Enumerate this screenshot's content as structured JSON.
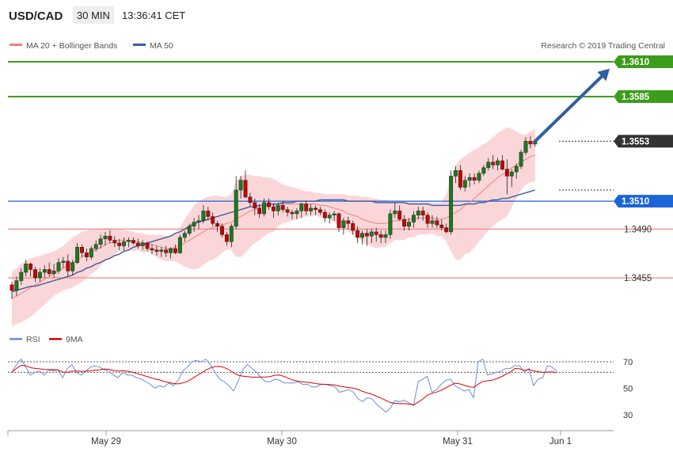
{
  "header": {
    "symbol": "USD/CAD",
    "timeframe": "30 MIN",
    "time": "13:36:41 CET"
  },
  "legend": {
    "bollinger_label": "MA 20 + Bollinger Bands",
    "ma50_label": "MA 50",
    "copyright": "Research © 2019 Trading Central"
  },
  "rsi_legend": {
    "rsi_label": "RSI",
    "ma_label": "9MA"
  },
  "colors": {
    "bullish": "#1a7a1a",
    "bearish": "#cc0000",
    "ma20": "#f08080",
    "band_fill": "#fbd6d8",
    "ma50": "#3a5f9e",
    "resistance": "#3c9c1c",
    "pivot_blue": "#1a66d9",
    "support": "#ee8888",
    "arrow": "#2f5f9e",
    "rsi": "#6b8ed6",
    "rsi_ma": "#e00000"
  },
  "levels": [
    {
      "label": "1.3610",
      "value": 1.361,
      "type": "resistance"
    },
    {
      "label": "1.3585",
      "value": 1.3585,
      "type": "resistance"
    },
    {
      "label": "1.3553",
      "value": 1.3553,
      "type": "current"
    },
    {
      "label": "1.3510",
      "value": 1.351,
      "type": "pivot"
    },
    {
      "label": "1.3490",
      "value": 1.349,
      "type": "support"
    },
    {
      "label": "1.3455",
      "value": 1.3455,
      "type": "support"
    }
  ],
  "chart_data": {
    "type": "candlestick",
    "price_range": [
      1.342,
      1.364
    ],
    "x_ticks": [
      "May 29",
      "May 30",
      "May 31",
      "Jun 1"
    ],
    "x_tick_positions": [
      14,
      42,
      70,
      84
    ],
    "candles_ohlc": [
      [
        1.345,
        1.3452,
        1.344,
        1.3446
      ],
      [
        1.3446,
        1.3456,
        1.3442,
        1.3453
      ],
      [
        1.3453,
        1.3462,
        1.345,
        1.3459
      ],
      [
        1.3459,
        1.3468,
        1.3456,
        1.3465
      ],
      [
        1.3465,
        1.3466,
        1.3456,
        1.3461
      ],
      [
        1.3461,
        1.3463,
        1.3452,
        1.3455
      ],
      [
        1.3455,
        1.3462,
        1.3452,
        1.3459
      ],
      [
        1.3459,
        1.3464,
        1.3455,
        1.3461
      ],
      [
        1.3461,
        1.3466,
        1.3456,
        1.3458
      ],
      [
        1.3458,
        1.3465,
        1.3455,
        1.346
      ],
      [
        1.346,
        1.3469,
        1.3458,
        1.3466
      ],
      [
        1.3466,
        1.347,
        1.3462,
        1.3467
      ],
      [
        1.3467,
        1.3472,
        1.3456,
        1.346
      ],
      [
        1.346,
        1.3468,
        1.3457,
        1.3466
      ],
      [
        1.3466,
        1.348,
        1.3465,
        1.3477
      ],
      [
        1.3477,
        1.3479,
        1.347,
        1.3473
      ],
      [
        1.3473,
        1.3476,
        1.3467,
        1.347
      ],
      [
        1.347,
        1.3478,
        1.3468,
        1.3476
      ],
      [
        1.3476,
        1.3482,
        1.3474,
        1.3479
      ],
      [
        1.3479,
        1.3486,
        1.3476,
        1.3483
      ],
      [
        1.3483,
        1.3488,
        1.3478,
        1.3485
      ],
      [
        1.3485,
        1.3489,
        1.348,
        1.3482
      ],
      [
        1.3482,
        1.3485,
        1.3477,
        1.348
      ],
      [
        1.348,
        1.3483,
        1.3475,
        1.3478
      ],
      [
        1.3478,
        1.3484,
        1.3474,
        1.3481
      ],
      [
        1.3481,
        1.3484,
        1.3477,
        1.3482
      ],
      [
        1.3482,
        1.3484,
        1.3479,
        1.348
      ],
      [
        1.348,
        1.3483,
        1.3476,
        1.3478
      ],
      [
        1.3478,
        1.3482,
        1.3475,
        1.348
      ],
      [
        1.348,
        1.3481,
        1.3474,
        1.3476
      ],
      [
        1.3476,
        1.3479,
        1.3472,
        1.3475
      ],
      [
        1.3475,
        1.3478,
        1.3471,
        1.3474
      ],
      [
        1.3474,
        1.3477,
        1.347,
        1.3475
      ],
      [
        1.3475,
        1.3478,
        1.347,
        1.3473
      ],
      [
        1.3473,
        1.3477,
        1.3469,
        1.3476
      ],
      [
        1.3476,
        1.3479,
        1.3472,
        1.3473
      ],
      [
        1.3473,
        1.3486,
        1.3472,
        1.3484
      ],
      [
        1.3484,
        1.3489,
        1.3481,
        1.3487
      ],
      [
        1.3487,
        1.3494,
        1.3485,
        1.3492
      ],
      [
        1.3492,
        1.3498,
        1.3488,
        1.3495
      ],
      [
        1.3495,
        1.35,
        1.349,
        1.3496
      ],
      [
        1.3496,
        1.3507,
        1.3494,
        1.3503
      ],
      [
        1.3503,
        1.3506,
        1.3496,
        1.3499
      ],
      [
        1.3499,
        1.3502,
        1.3492,
        1.3494
      ],
      [
        1.3494,
        1.3496,
        1.3488,
        1.3492
      ],
      [
        1.3492,
        1.3494,
        1.3484,
        1.3486
      ],
      [
        1.3486,
        1.3488,
        1.3478,
        1.3481
      ],
      [
        1.3481,
        1.3494,
        1.3477,
        1.3492
      ],
      [
        1.3492,
        1.3528,
        1.349,
        1.3518
      ],
      [
        1.3518,
        1.3528,
        1.3512,
        1.3525
      ],
      [
        1.3525,
        1.3532,
        1.3512,
        1.3513
      ],
      [
        1.3513,
        1.3516,
        1.3506,
        1.3509
      ],
      [
        1.3509,
        1.3512,
        1.35,
        1.3505
      ],
      [
        1.3505,
        1.3508,
        1.3498,
        1.3501
      ],
      [
        1.3501,
        1.3512,
        1.3499,
        1.3509
      ],
      [
        1.3509,
        1.3512,
        1.3504,
        1.3506
      ],
      [
        1.3506,
        1.3508,
        1.3498,
        1.3503
      ],
      [
        1.3503,
        1.3509,
        1.35,
        1.3507
      ],
      [
        1.3507,
        1.351,
        1.3502,
        1.3504
      ],
      [
        1.3504,
        1.3506,
        1.3499,
        1.3502
      ],
      [
        1.3502,
        1.3504,
        1.3497,
        1.3501
      ],
      [
        1.3501,
        1.3505,
        1.3497,
        1.3503
      ],
      [
        1.3503,
        1.3509,
        1.3498,
        1.3508
      ],
      [
        1.3508,
        1.351,
        1.35,
        1.3503
      ],
      [
        1.3503,
        1.3508,
        1.35,
        1.3505
      ],
      [
        1.3505,
        1.3507,
        1.35,
        1.3504
      ],
      [
        1.3504,
        1.3506,
        1.35,
        1.3502
      ],
      [
        1.3502,
        1.3504,
        1.3495,
        1.3498
      ],
      [
        1.3498,
        1.3502,
        1.3494,
        1.35
      ],
      [
        1.35,
        1.3503,
        1.3496,
        1.3501
      ],
      [
        1.3501,
        1.3502,
        1.3488,
        1.3491
      ],
      [
        1.3491,
        1.3498,
        1.3486,
        1.3496
      ],
      [
        1.3496,
        1.3499,
        1.349,
        1.3494
      ],
      [
        1.3494,
        1.3496,
        1.3486,
        1.3489
      ],
      [
        1.3489,
        1.3492,
        1.348,
        1.3484
      ],
      [
        1.3484,
        1.3489,
        1.3479,
        1.3487
      ],
      [
        1.3487,
        1.349,
        1.3478,
        1.3485
      ],
      [
        1.3485,
        1.349,
        1.348,
        1.3488
      ],
      [
        1.3488,
        1.3491,
        1.3481,
        1.3486
      ],
      [
        1.3486,
        1.3489,
        1.348,
        1.3484
      ],
      [
        1.3484,
        1.3489,
        1.348,
        1.3486
      ],
      [
        1.3486,
        1.3504,
        1.3483,
        1.3501
      ],
      [
        1.3501,
        1.3509,
        1.3498,
        1.3503
      ],
      [
        1.3503,
        1.3507,
        1.3496,
        1.3497
      ],
      [
        1.3497,
        1.35,
        1.3489,
        1.3492
      ],
      [
        1.3492,
        1.3498,
        1.3489,
        1.3495
      ],
      [
        1.3495,
        1.3503,
        1.3491,
        1.35
      ],
      [
        1.35,
        1.3506,
        1.3497,
        1.3503
      ],
      [
        1.3503,
        1.3506,
        1.3496,
        1.35
      ],
      [
        1.35,
        1.3502,
        1.3491,
        1.3494
      ],
      [
        1.3494,
        1.35,
        1.3491,
        1.3496
      ],
      [
        1.3496,
        1.3499,
        1.3491,
        1.3493
      ],
      [
        1.3493,
        1.3497,
        1.3489,
        1.3491
      ],
      [
        1.3491,
        1.3494,
        1.3487,
        1.3488
      ],
      [
        1.3488,
        1.3532,
        1.3486,
        1.3528
      ],
      [
        1.3528,
        1.3535,
        1.3523,
        1.3532
      ],
      [
        1.3532,
        1.3536,
        1.3518,
        1.352
      ],
      [
        1.352,
        1.3528,
        1.3517,
        1.3525
      ],
      [
        1.3525,
        1.353,
        1.352,
        1.3527
      ],
      [
        1.3527,
        1.353,
        1.3522,
        1.3525
      ],
      [
        1.3525,
        1.3532,
        1.3523,
        1.353
      ],
      [
        1.353,
        1.3536,
        1.3528,
        1.3534
      ],
      [
        1.3534,
        1.3541,
        1.3532,
        1.3538
      ],
      [
        1.3538,
        1.3543,
        1.3533,
        1.3536
      ],
      [
        1.3536,
        1.3541,
        1.3532,
        1.3539
      ],
      [
        1.3539,
        1.3543,
        1.3532,
        1.3533
      ],
      [
        1.3533,
        1.354,
        1.3515,
        1.3528
      ],
      [
        1.3528,
        1.3533,
        1.352,
        1.3531
      ],
      [
        1.3531,
        1.3537,
        1.3526,
        1.3535
      ],
      [
        1.3535,
        1.3547,
        1.3533,
        1.3545
      ],
      [
        1.3545,
        1.3556,
        1.3543,
        1.3553
      ],
      [
        1.3553,
        1.3557,
        1.3548,
        1.3551
      ],
      [
        1.3551,
        1.3554,
        1.3549,
        1.3553
      ]
    ],
    "ma20": [
      1.344,
      1.3442,
      1.3444,
      1.3446,
      1.3448,
      1.345,
      1.3452,
      1.3454,
      1.3456,
      1.3458,
      1.346,
      1.3462,
      1.3464,
      1.3466,
      1.3468,
      1.347,
      1.3472,
      1.3474,
      1.3475,
      1.3477,
      1.3479,
      1.348,
      1.3481,
      1.3482,
      1.3482,
      1.3482,
      1.3481,
      1.3481,
      1.348,
      1.348,
      1.3479,
      1.3478,
      1.3477,
      1.3476,
      1.3476,
      1.3477,
      1.3478,
      1.348,
      1.3482,
      1.3484,
      1.3486,
      1.3488,
      1.349,
      1.3491,
      1.3492,
      1.3493,
      1.3494,
      1.3495,
      1.3497,
      1.3499,
      1.3501,
      1.3503,
      1.3504,
      1.3505,
      1.3506,
      1.3507,
      1.3507,
      1.3508,
      1.3508,
      1.3508,
      1.3508,
      1.3508,
      1.3508,
      1.3508,
      1.3508,
      1.3508,
      1.3507,
      1.3507,
      1.3506,
      1.3505,
      1.3504,
      1.3503,
      1.3501,
      1.35,
      1.3499,
      1.3497,
      1.3496,
      1.3495,
      1.3494,
      1.3494,
      1.3494,
      1.3495,
      1.3496,
      1.3496,
      1.3496,
      1.3497,
      1.3497,
      1.3498,
      1.3498,
      1.3498,
      1.3498,
      1.3497,
      1.3497,
      1.3498,
      1.35,
      1.3502,
      1.3504,
      1.3507,
      1.3509,
      1.3512,
      1.3515,
      1.3518,
      1.3521,
      1.3524,
      1.3527,
      1.3529,
      1.3531,
      1.3534,
      1.3536,
      1.3538,
      1.354,
      1.3542,
      1.3543
    ],
    "upper_band": [
      1.346,
      1.3462,
      1.3465,
      1.3467,
      1.3469,
      1.347,
      1.3471,
      1.3472,
      1.3473,
      1.3474,
      1.3476,
      1.3478,
      1.3481,
      1.3484,
      1.3486,
      1.3488,
      1.3489,
      1.349,
      1.349,
      1.349,
      1.3491,
      1.3491,
      1.349,
      1.349,
      1.3489,
      1.3489,
      1.3488,
      1.3487,
      1.3487,
      1.3486,
      1.3486,
      1.3486,
      1.3486,
      1.3485,
      1.3485,
      1.3487,
      1.3491,
      1.3497,
      1.3502,
      1.3507,
      1.351,
      1.3512,
      1.3513,
      1.3514,
      1.3514,
      1.3513,
      1.3513,
      1.3515,
      1.3524,
      1.3528,
      1.3529,
      1.3529,
      1.3528,
      1.3528,
      1.3527,
      1.3527,
      1.3526,
      1.3524,
      1.3522,
      1.3521,
      1.352,
      1.3519,
      1.3518,
      1.3517,
      1.3517,
      1.3516,
      1.3516,
      1.3515,
      1.3515,
      1.3515,
      1.3515,
      1.3515,
      1.3514,
      1.3514,
      1.3514,
      1.3513,
      1.3513,
      1.3512,
      1.3512,
      1.3511,
      1.3511,
      1.351,
      1.351,
      1.351,
      1.351,
      1.351,
      1.351,
      1.351,
      1.351,
      1.351,
      1.3509,
      1.3509,
      1.3509,
      1.3515,
      1.3526,
      1.3536,
      1.354,
      1.3542,
      1.3545,
      1.3547,
      1.3549,
      1.3551,
      1.3553,
      1.3556,
      1.3559,
      1.3561,
      1.3563,
      1.3562,
      1.356,
      1.3558,
      1.3558,
      1.356,
      1.3562
    ],
    "lower_band": [
      1.342,
      1.3422,
      1.3423,
      1.3425,
      1.3427,
      1.343,
      1.3433,
      1.3436,
      1.3439,
      1.3442,
      1.3444,
      1.3446,
      1.3447,
      1.3448,
      1.345,
      1.3452,
      1.3455,
      1.3458,
      1.346,
      1.3464,
      1.3467,
      1.3469,
      1.3472,
      1.3474,
      1.3475,
      1.3475,
      1.3474,
      1.3475,
      1.3473,
      1.3474,
      1.3472,
      1.347,
      1.3468,
      1.3467,
      1.3467,
      1.3467,
      1.3465,
      1.3463,
      1.3462,
      1.3461,
      1.3462,
      1.3464,
      1.3467,
      1.3468,
      1.347,
      1.3473,
      1.3475,
      1.3475,
      1.347,
      1.347,
      1.3473,
      1.3477,
      1.348,
      1.3482,
      1.3485,
      1.3487,
      1.3488,
      1.3492,
      1.3494,
      1.3495,
      1.3496,
      1.3497,
      1.3498,
      1.3499,
      1.3499,
      1.35,
      1.3498,
      1.3499,
      1.3497,
      1.3495,
      1.3493,
      1.3491,
      1.3488,
      1.3486,
      1.3484,
      1.3481,
      1.3479,
      1.3478,
      1.3476,
      1.3477,
      1.3477,
      1.348,
      1.3482,
      1.3482,
      1.3482,
      1.3484,
      1.3484,
      1.3486,
      1.3486,
      1.3486,
      1.3487,
      1.3485,
      1.3485,
      1.3481,
      1.3474,
      1.3468,
      1.3468,
      1.3472,
      1.3473,
      1.3477,
      1.3481,
      1.3485,
      1.3489,
      1.3492,
      1.3495,
      1.3497,
      1.3499,
      1.3506,
      1.3512,
      1.3518,
      1.3522,
      1.3524,
      1.3524
    ],
    "ma50": [
      1.3445,
      1.3446,
      1.3447,
      1.3448,
      1.3449,
      1.3449,
      1.345,
      1.3451,
      1.3452,
      1.3453,
      1.3454,
      1.3455,
      1.3456,
      1.3457,
      1.3459,
      1.346,
      1.3462,
      1.3463,
      1.3465,
      1.3466,
      1.3468,
      1.3469,
      1.3471,
      1.3472,
      1.3474,
      1.3475,
      1.3477,
      1.3478,
      1.3479,
      1.348,
      1.3481,
      1.3482,
      1.3483,
      1.3484,
      1.3485,
      1.3487,
      1.3488,
      1.349,
      1.3492,
      1.3494,
      1.3495,
      1.3496,
      1.3497,
      1.3498,
      1.3499,
      1.35,
      1.3501,
      1.3502,
      1.3503,
      1.3504,
      1.3505,
      1.3506,
      1.3506,
      1.3507,
      1.3507,
      1.3508,
      1.3508,
      1.3508,
      1.3509,
      1.3509,
      1.3509,
      1.351,
      1.351,
      1.351,
      1.351,
      1.351,
      1.3511,
      1.3511,
      1.3511,
      1.3511,
      1.3511,
      1.3511,
      1.351,
      1.351,
      1.351,
      1.351,
      1.351,
      1.351,
      1.3509,
      1.3509,
      1.3509,
      1.3509,
      1.3509,
      1.3509,
      1.3509,
      1.3508,
      1.3508,
      1.3508,
      1.3508,
      1.3508,
      1.3507,
      1.3507,
      1.3507,
      1.3507,
      1.3507,
      1.3507,
      1.3507,
      1.3508,
      1.3508,
      1.3508,
      1.3509,
      1.3509,
      1.351,
      1.3511,
      1.3511,
      1.3512,
      1.3512,
      1.3513,
      1.3514,
      1.3515,
      1.3516,
      1.3517,
      1.3518
    ],
    "projection": {
      "from_index": 112,
      "from_value": 1.3553,
      "to_index": 118,
      "to_value": 1.3605
    },
    "rsi_panel": {
      "ylim": [
        20,
        80
      ],
      "ticks": [
        30,
        50,
        70
      ],
      "ref_lines": [
        70,
        62
      ],
      "rsi": [
        62,
        68,
        72,
        66,
        60,
        62,
        63,
        60,
        64,
        63,
        64,
        58,
        65,
        68,
        62,
        60,
        63,
        66,
        67,
        66,
        64,
        63,
        60,
        58,
        62,
        60,
        60,
        58,
        57,
        55,
        53,
        50,
        52,
        51,
        54,
        52,
        56,
        63,
        66,
        70,
        71,
        70,
        72,
        68,
        62,
        57,
        55,
        52,
        48,
        55,
        64,
        68,
        65,
        62,
        58,
        55,
        55,
        57,
        56,
        54,
        54,
        54,
        55,
        53,
        53,
        51,
        51,
        53,
        53,
        52,
        51,
        47,
        48,
        49,
        47,
        42,
        40,
        43,
        42,
        38,
        35,
        32,
        35,
        41,
        40,
        41,
        39,
        37,
        55,
        57,
        59,
        47,
        49,
        53,
        56,
        57,
        52,
        50,
        48,
        49,
        43,
        70,
        72,
        60,
        61,
        62,
        63,
        65,
        65,
        67,
        67,
        62,
        65,
        52,
        57,
        58,
        67,
        66,
        63
      ]
    }
  }
}
